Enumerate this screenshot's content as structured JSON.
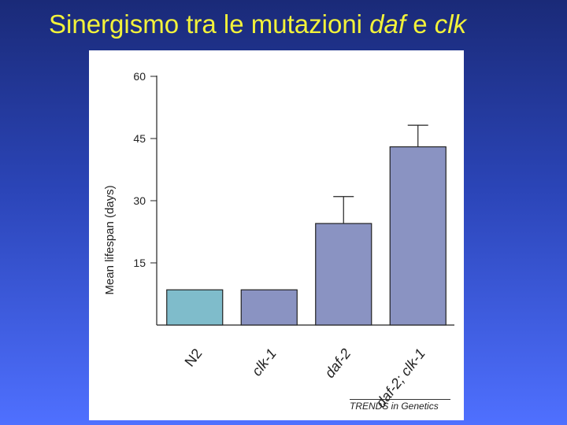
{
  "slide": {
    "title_prefix": "Sinergismo tra le mutazioni ",
    "title_daf": "daf",
    "title_mid": " e ",
    "title_clk": "clk"
  },
  "colors": {
    "title": "#f2f23a",
    "background_top": "#1a2a78",
    "background_bottom": "#4f70ff",
    "bar_wildtype": "#7fbccb",
    "bar_mutant": "#8a93c2"
  },
  "figure": {
    "credit": "TRENDS in Genetics"
  },
  "chart_data": {
    "type": "bar",
    "ylabel": "Mean lifespan (days)",
    "ylim": [
      0,
      60
    ],
    "yticks": [
      15,
      30,
      45,
      60
    ],
    "categories": [
      "N2",
      "clk-1",
      "daf-2",
      "daf-2; clk-1"
    ],
    "values": [
      8.5,
      8.5,
      24.5,
      43
    ],
    "errors": [
      0,
      0,
      6.5,
      5.2
    ],
    "bar_colors": [
      "#7fbccb",
      "#8a93c2",
      "#8a93c2",
      "#8a93c2"
    ],
    "grid": false
  }
}
